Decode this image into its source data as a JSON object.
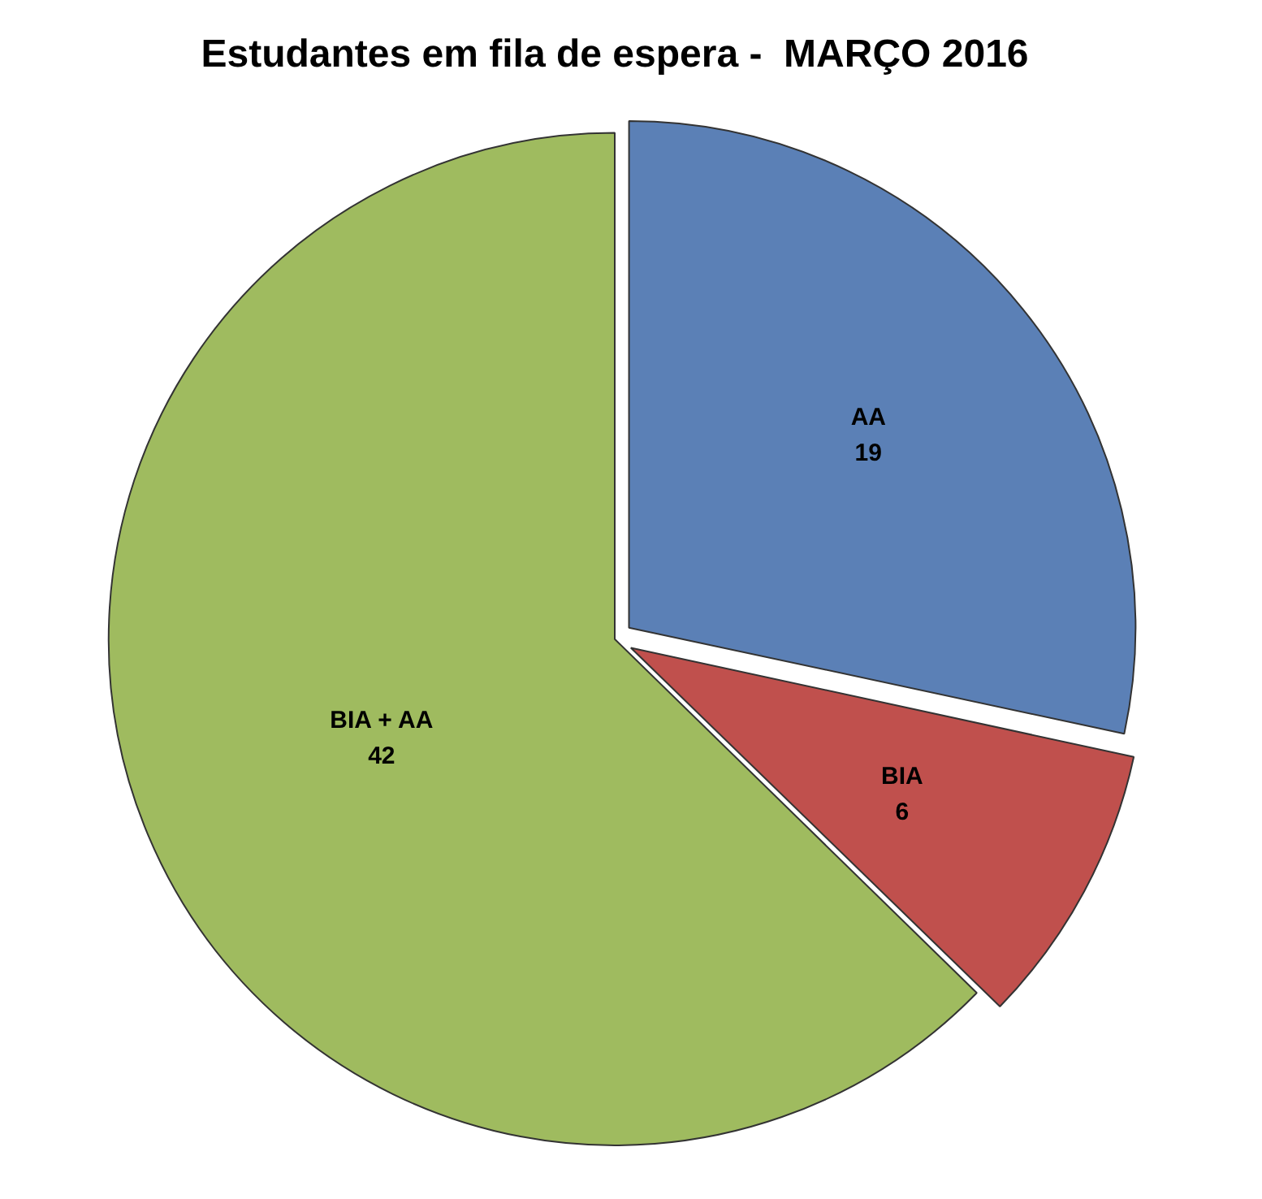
{
  "chart_data": {
    "type": "pie",
    "title": "Estudantes em fila de espera -  MARÇO 2016",
    "categories": [
      "AA",
      "BIA",
      "BIA + AA"
    ],
    "values": [
      19,
      6,
      42
    ],
    "colors": [
      "#5b80b6",
      "#c0504d",
      "#9fbb5f"
    ],
    "data_labels": true,
    "legend": false
  }
}
